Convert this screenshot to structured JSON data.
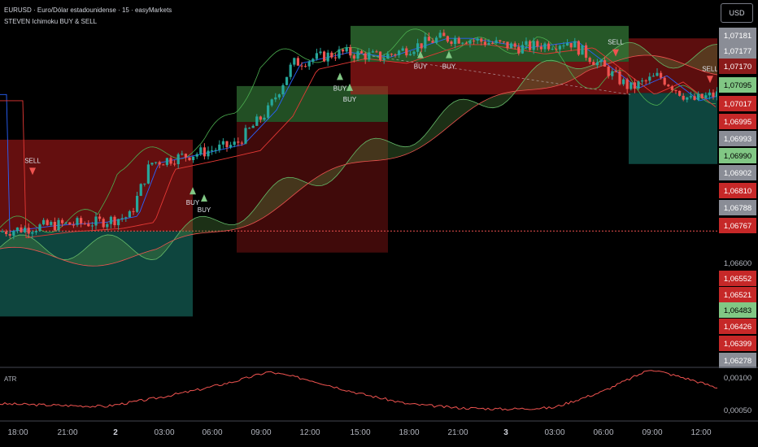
{
  "header": {
    "symbol_line": "EURUSD · Euro/Dólar estadounidense · 15 · easyMarkets",
    "indicator_line": "STEVEN Ichimoku BUY & SELL"
  },
  "currency_button": "USD",
  "atr_label": "ATR",
  "colors": {
    "up": "#26a69a",
    "down": "#ef5350",
    "buy_marker": "#81c784",
    "sell_marker": "#ef5350",
    "green_box": "#4caf50",
    "red_box": "#b71c1c",
    "teal_box": "#0f4c45",
    "cloud_green": "#4f8a3f",
    "cloud_red": "#7a1e22"
  },
  "chart_data": [
    {
      "type": "line",
      "name": "price",
      "x_ticks": [
        "18:00",
        "21:00",
        "2",
        "03:00",
        "06:00",
        "09:00",
        "12:00",
        "15:00",
        "18:00",
        "21:00",
        "3",
        "03:00",
        "06:00",
        "09:00",
        "12:00"
      ],
      "y_ticks": [
        {
          "value": 1.07181,
          "label": "1,07181",
          "style": "gray"
        },
        {
          "value": 1.07177,
          "label": "1,07177",
          "style": "gray"
        },
        {
          "value": 1.0717,
          "label": "1,07170",
          "style": "darkred"
        },
        {
          "value": 1.07095,
          "label": "1,07095",
          "style": "green"
        },
        {
          "value": 1.07017,
          "label": "1,07017",
          "style": "red"
        },
        {
          "value": 1.06995,
          "label": "1,06995",
          "style": "red"
        },
        {
          "value": 1.06993,
          "label": "1,06993",
          "style": "gray"
        },
        {
          "value": 1.0699,
          "label": "1,06990",
          "style": "green"
        },
        {
          "value": 1.06902,
          "label": "1,06902",
          "style": "gray"
        },
        {
          "value": 1.0681,
          "label": "1,06810",
          "style": "red"
        },
        {
          "value": 1.06788,
          "label": "1,06788",
          "style": "gray"
        },
        {
          "value": 1.06767,
          "label": "1,06767",
          "style": "red"
        },
        {
          "value": 1.066,
          "label": "1,06600",
          "style": "plain"
        },
        {
          "value": 1.06552,
          "label": "1,06552",
          "style": "red"
        },
        {
          "value": 1.06521,
          "label": "1,06521",
          "style": "red"
        },
        {
          "value": 1.06483,
          "label": "1,06483",
          "style": "green"
        },
        {
          "value": 1.06426,
          "label": "1,06426",
          "style": "red"
        },
        {
          "value": 1.06399,
          "label": "1,06399",
          "style": "red"
        },
        {
          "value": 1.06278,
          "label": "1,06278",
          "style": "gray"
        }
      ],
      "signals": [
        {
          "label": "SELL",
          "time": "20:00",
          "side": "sell"
        },
        {
          "label": "BUY",
          "time": "05:00",
          "side": "buy"
        },
        {
          "label": "BUY",
          "time": "06:00",
          "side": "buy"
        },
        {
          "label": "BUY",
          "time": "14:30",
          "side": "buy"
        },
        {
          "label": "BUY",
          "time": "13:30",
          "side": "buy"
        },
        {
          "label": "BUY",
          "time": "17:45",
          "side": "buy"
        },
        {
          "label": "BUY",
          "time": "19:30",
          "side": "buy"
        },
        {
          "label": "SELL",
          "time": "06:30",
          "side": "sell"
        },
        {
          "label": "SELL",
          "time": "12:15",
          "side": "sell"
        }
      ]
    },
    {
      "type": "line",
      "name": "ATR",
      "y_ticks": [
        {
          "value": 0.001,
          "label": "0,00100"
        },
        {
          "value": 0.0005,
          "label": "0,00050"
        }
      ]
    }
  ]
}
